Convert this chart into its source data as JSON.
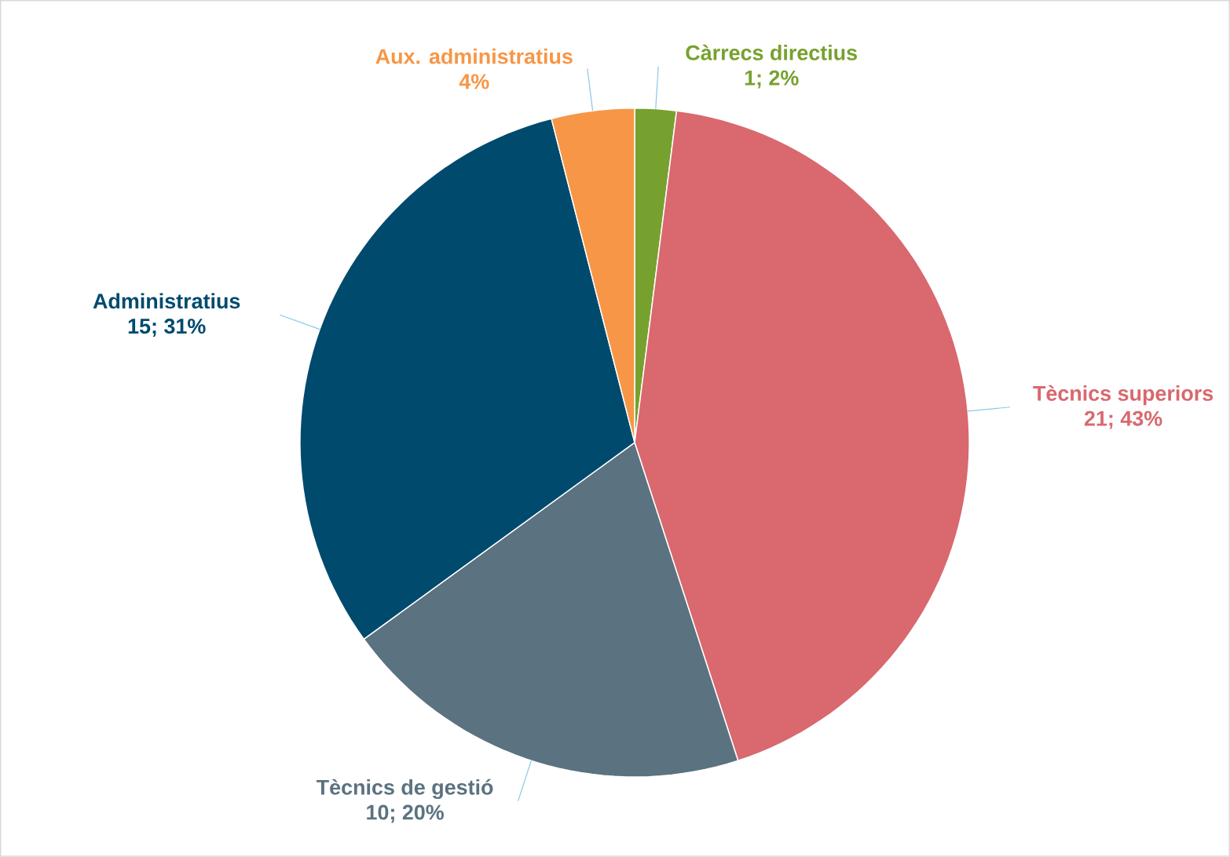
{
  "chart_data": {
    "type": "pie",
    "categories": [
      "Càrrecs directius",
      "Tècnics superiors",
      "Tècnics de gestió",
      "Administratius",
      "Aux. administratius"
    ],
    "values": [
      2,
      43,
      20,
      31,
      4
    ],
    "colors": [
      "#77a12f",
      "#d9686f",
      "#5b7280",
      "#004a6e",
      "#f79646"
    ],
    "value_labels": [
      "1; 2%",
      "21; 43%",
      "10; 20%",
      "15; 31%",
      "4%"
    ]
  }
}
